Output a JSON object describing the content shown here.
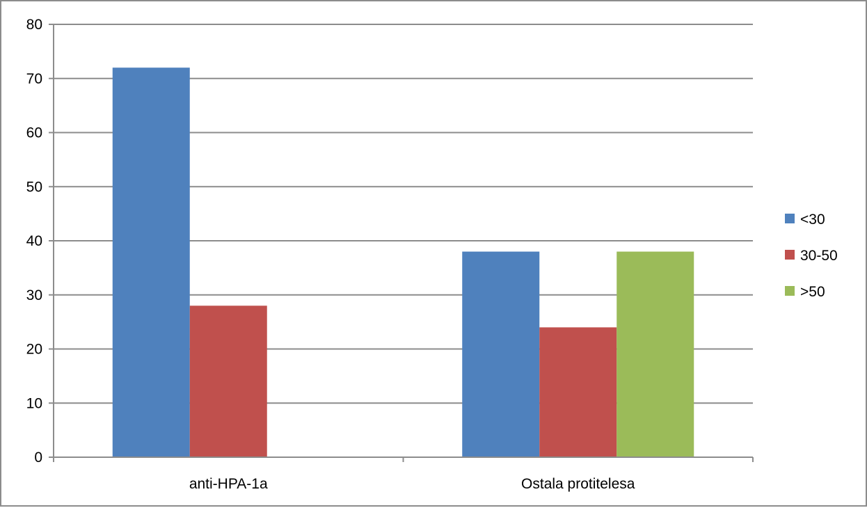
{
  "chart_data": {
    "type": "bar",
    "categories": [
      "anti-HPA-1a",
      "Ostala protitelesa"
    ],
    "series": [
      {
        "name": "<30",
        "values": [
          72,
          38
        ],
        "color": "#4f81bd"
      },
      {
        "name": "30-50",
        "values": [
          28,
          24
        ],
        "color": "#c0504d"
      },
      {
        "name": ">50",
        "values": [
          0,
          38
        ],
        "color": "#9bbb59"
      }
    ],
    "ylim": [
      0,
      80
    ],
    "yticks": [
      0,
      10,
      20,
      30,
      40,
      50,
      60,
      70,
      80
    ],
    "grid": true,
    "legend": "right",
    "title": "",
    "xlabel": "",
    "ylabel": ""
  }
}
